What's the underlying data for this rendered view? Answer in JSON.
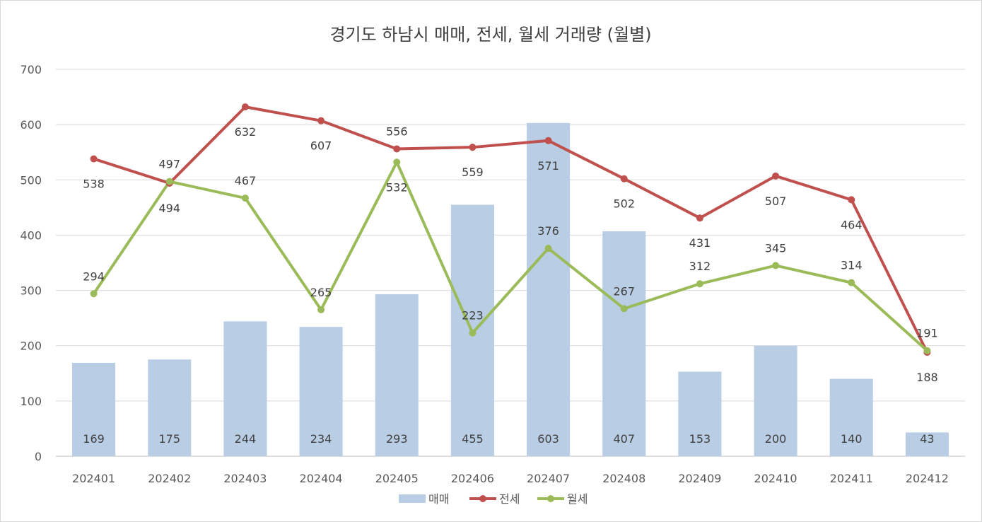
{
  "chart_data": {
    "type": "bar+line",
    "title": "경기도 하남시 매매, 전세, 월세 거래량 (월별)",
    "categories": [
      "202401",
      "202402",
      "202403",
      "202404",
      "202405",
      "202406",
      "202407",
      "202408",
      "202409",
      "202410",
      "202411",
      "202412"
    ],
    "yticks": [
      "0",
      "100",
      "200",
      "300",
      "400",
      "500",
      "600",
      "700"
    ],
    "ylim": [
      0,
      700
    ],
    "grid": true,
    "legend_position": "bottom",
    "series": [
      {
        "name": "매매",
        "type": "bar",
        "color": "#b9cde5",
        "values": [
          169,
          175,
          244,
          234,
          293,
          455,
          603,
          407,
          153,
          200,
          140,
          43
        ]
      },
      {
        "name": "전세",
        "type": "line",
        "color": "#c0504d",
        "values": [
          538,
          494,
          632,
          607,
          556,
          559,
          571,
          502,
          431,
          507,
          464,
          188
        ]
      },
      {
        "name": "월세",
        "type": "line",
        "color": "#9bbb59",
        "values": [
          294,
          497,
          467,
          265,
          532,
          223,
          376,
          267,
          312,
          345,
          314,
          191
        ]
      }
    ]
  }
}
